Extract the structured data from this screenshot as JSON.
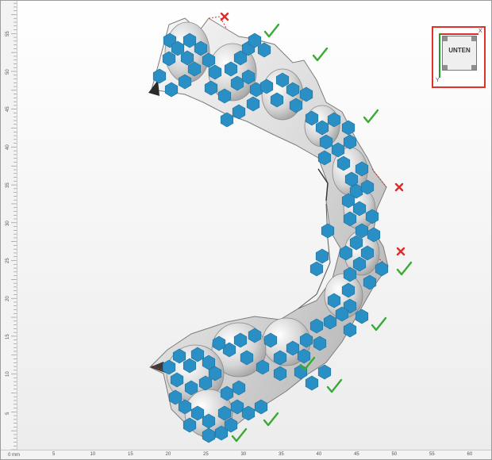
{
  "viewport": {
    "ruler_unit": "0 mm",
    "ruler_x_labels": [
      "5",
      "10",
      "15",
      "20",
      "25",
      "30",
      "35",
      "40",
      "45",
      "50",
      "55",
      "60"
    ],
    "ruler_y_labels": [
      "5",
      "10",
      "15",
      "20",
      "25",
      "30",
      "35",
      "40",
      "45",
      "50",
      "55"
    ]
  },
  "orientation": {
    "view_label": "UNTEN",
    "axis_x": "X",
    "axis_y": "Y"
  },
  "colors": {
    "support_marker": "#2a8fc4",
    "check_mark": "#3aa935",
    "cross_mark": "#e02b2b",
    "model_fill": "#dcdcdc",
    "highlight_border": "#e0322c"
  },
  "markers": {
    "check_count": 9,
    "cross_count": 3,
    "check_icon": "check-icon",
    "cross_icon": "cross-icon"
  }
}
